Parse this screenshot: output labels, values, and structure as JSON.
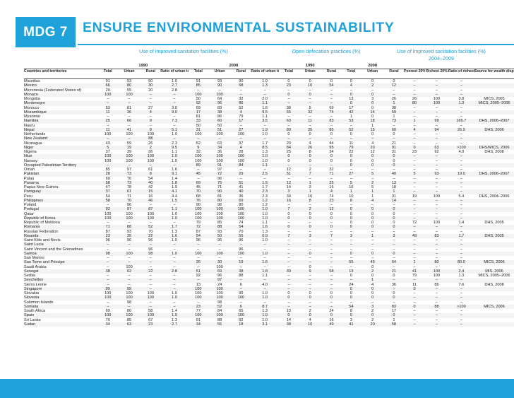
{
  "header": {
    "badge": "MDG 7",
    "title": "ENSURE ENVIRONMENTAL SUSTAINABILITY"
  },
  "groups": {
    "sanitation": "Use of improved sanitation facilities (%)",
    "defecation": "Open defecation practices (%)",
    "quintile": "Use of improved sanitation facilities (%) 2004–2009"
  },
  "years": {
    "y1990": "1990",
    "y2008": "2008"
  },
  "columns": {
    "countries": "Countries and territories",
    "total": "Total",
    "urban": "Urban",
    "rural": "Rural",
    "ratio": "Ratio of urban to rural",
    "poorest": "Poorest 20%",
    "richest": "Richest 20%",
    "ratio_rp": "Ratio of richest to poorest",
    "source": "Source for wealth disparity data"
  },
  "rows": [
    [
      "Mauritius",
      "91",
      "93",
      "90",
      "1.0",
      "91",
      "93",
      "90",
      "1.0",
      "0",
      "0",
      "0",
      "0",
      "0",
      "0",
      "–",
      "–",
      "–",
      ""
    ],
    [
      "Mexico",
      "66",
      "80",
      "30",
      "2.7",
      "85",
      "90",
      "68",
      "1.3",
      "23",
      "10",
      "54",
      "4",
      "2",
      "12",
      "–",
      "–",
      "–",
      ""
    ],
    [
      "Micronesia (Federated States of)",
      "29",
      "55",
      "20",
      "2.8",
      "–",
      "–",
      "–",
      "–",
      "–",
      "–",
      "–",
      "–",
      "–",
      "–",
      "–",
      "–",
      "–",
      ""
    ],
    [
      "Monaco",
      "100",
      "100",
      "–",
      "–",
      "100",
      "100",
      "–",
      "–",
      "0",
      "0",
      "–",
      "0",
      "0",
      "–",
      "–",
      "–",
      "–",
      ""
    ],
    [
      "Mongolia",
      "–",
      "–",
      "–",
      "–",
      "50",
      "64",
      "32",
      "2.0",
      "–",
      "–",
      "–",
      "13",
      "3",
      "26",
      "26",
      "100",
      "3.8",
      "MICS, 2005"
    ],
    [
      "Montenegro",
      "–",
      "–",
      "–",
      "–",
      "92",
      "96",
      "86",
      "1.1",
      "–",
      "–",
      "–",
      "0",
      "0",
      "1",
      "80",
      "100",
      "1.3",
      "MICS, 2005–2006"
    ],
    [
      "Morocco",
      "53",
      "81",
      "27",
      "3.0",
      "69",
      "83",
      "52",
      "1.6",
      "38",
      "5",
      "69",
      "17",
      "0",
      "38",
      "–",
      "–",
      "–",
      ""
    ],
    [
      "Mozambique",
      "11",
      "36",
      "4",
      "9.0",
      "17",
      "38",
      "4",
      "9.5",
      "65",
      "32",
      "74",
      "42",
      "14",
      "59",
      "–",
      "–",
      "–",
      ""
    ],
    [
      "Myanmar",
      "–",
      "–",
      "–",
      "–",
      "81",
      "86",
      "79",
      "1.1",
      "–",
      "–",
      "–",
      "1",
      "0",
      "1",
      "–",
      "–",
      "–",
      ""
    ],
    [
      "Namibia",
      "25",
      "66",
      "9",
      "7.3",
      "33",
      "60",
      "17",
      "3.5",
      "63",
      "11",
      "83",
      "53",
      "18",
      "73",
      "1",
      "99",
      "165.7",
      "DHS, 2006–2007"
    ],
    [
      "Nauru",
      "–",
      "–",
      "–",
      "–",
      "50",
      "50",
      "–",
      "–",
      "–",
      "–",
      "–",
      "–",
      "1",
      "–",
      "–",
      "–",
      "–",
      ""
    ],
    [
      "Nepal",
      "11",
      "41",
      "8",
      "5.1",
      "31",
      "51",
      "27",
      "1.9",
      "80",
      "35",
      "85",
      "52",
      "15",
      "60",
      "4",
      "94",
      "26.9",
      "DHS, 2006"
    ],
    [
      "Netherlands",
      "100",
      "100",
      "100",
      "1.0",
      "100",
      "100",
      "100",
      "1.0",
      "0",
      "0",
      "0",
      "0",
      "0",
      "0",
      "–",
      "–",
      "–",
      ""
    ],
    [
      "New Zealand",
      "–",
      "–",
      "88",
      "–",
      "–",
      "–",
      "–",
      "–",
      "–",
      "–",
      "–",
      "–",
      "–",
      "–",
      "–",
      "–",
      "–",
      ""
    ],
    [
      "Nicaragua",
      "43",
      "59",
      "26",
      "2.3",
      "52",
      "63",
      "37",
      "1.7",
      "23",
      "4",
      "44",
      "11",
      "4",
      "21",
      "–",
      "–",
      "–",
      ""
    ],
    [
      "Niger",
      "5",
      "19",
      "2",
      "9.5",
      "9",
      "34",
      "4",
      "8.5",
      "84",
      "26",
      "95",
      "79",
      "20",
      "91",
      "0",
      "63",
      ">100",
      "DHS/MICS, 2006"
    ],
    [
      "Nigeria",
      "37",
      "39",
      "36",
      "1.1",
      "32",
      "36",
      "28",
      "1.3",
      "25",
      "8",
      "34",
      "22",
      "12",
      "31",
      "23",
      "92",
      "4.0",
      "DHS, 2008"
    ],
    [
      "Niue",
      "100",
      "100",
      "100",
      "1.0",
      "100",
      "100",
      "100",
      "1.0",
      "0",
      "0",
      "0",
      "0",
      "0",
      "0",
      "–",
      "–",
      "–",
      ""
    ],
    [
      "Norway",
      "100",
      "100",
      "100",
      "1.0",
      "100",
      "100",
      "100",
      "1.0",
      "0",
      "0",
      "0",
      "0",
      "0",
      "0",
      "–",
      "–",
      "–",
      ""
    ],
    [
      "Occupied Palestinian Territory",
      "–",
      "–",
      "–",
      "–",
      "89",
      "91",
      "84",
      "1.1",
      "–",
      "–",
      "–",
      "0",
      "0",
      "0",
      "–",
      "–",
      "–",
      ""
    ],
    [
      "Oman",
      "85",
      "97",
      "61",
      "1.6",
      "–",
      "97",
      "–",
      "–",
      "12",
      "2",
      "32",
      "–",
      "–",
      "–",
      "–",
      "–",
      "–",
      ""
    ],
    [
      "Pakistan",
      "28",
      "73",
      "8",
      "9.1",
      "45",
      "72",
      "29",
      "2.5",
      "51",
      "7",
      "71",
      "27",
      "5",
      "40",
      "5",
      "93",
      "19.0",
      "DHS, 2006–2007"
    ],
    [
      "Palau",
      "69",
      "76",
      "54",
      "1.4",
      "–",
      "96",
      "–",
      "–",
      "–",
      "–",
      "–",
      "–",
      "–",
      "–",
      "–",
      "–",
      "–",
      ""
    ],
    [
      "Panama",
      "58",
      "73",
      "40",
      "1.8",
      "69",
      "75",
      "51",
      "1.5",
      "12",
      "1",
      "25",
      "5",
      "2",
      "13",
      "–",
      "–",
      "–",
      ""
    ],
    [
      "Papua New Guinea",
      "47",
      "78",
      "42",
      "1.9",
      "45",
      "71",
      "41",
      "1.7",
      "14",
      "3",
      "16",
      "16",
      "5",
      "18",
      "–",
      "–",
      "–",
      ""
    ],
    [
      "Paraguay",
      "37",
      "61",
      "15",
      "4.1",
      "70",
      "90",
      "40",
      "2.3",
      "3",
      "1",
      "4",
      "1",
      "1",
      "1",
      "–",
      "–",
      "–",
      ""
    ],
    [
      "Peru",
      "54",
      "71",
      "16",
      "4.4",
      "68",
      "81",
      "36",
      "2.3",
      "34",
      "16",
      "74",
      "10",
      "1",
      "31",
      "19",
      "100",
      "5.4",
      "DHS, 2004–2006"
    ],
    [
      "Philippines",
      "58",
      "70",
      "46",
      "1.5",
      "76",
      "80",
      "69",
      "1.2",
      "16",
      "8",
      "23",
      "8",
      "4",
      "14",
      "–",
      "–",
      "–",
      ""
    ],
    [
      "Poland",
      "–",
      "96",
      "–",
      "–",
      "90",
      "96",
      "80",
      "1.2",
      "–",
      "–",
      "–",
      "–",
      "–",
      "–",
      "–",
      "–",
      "–",
      ""
    ],
    [
      "Portugal",
      "92",
      "97",
      "87",
      "1.1",
      "100",
      "100",
      "100",
      "1.0",
      "7",
      "2",
      "12",
      "0",
      "0",
      "0",
      "–",
      "–",
      "–",
      ""
    ],
    [
      "Qatar",
      "100",
      "100",
      "100",
      "1.0",
      "100",
      "100",
      "100",
      "1.0",
      "0",
      "0",
      "0",
      "0",
      "0",
      "0",
      "–",
      "–",
      "–",
      ""
    ],
    [
      "Republic of Korea",
      "100",
      "100",
      "100",
      "1.0",
      "100",
      "100",
      "100",
      "1.0",
      "0",
      "0",
      "0",
      "0",
      "0",
      "0",
      "–",
      "–",
      "–",
      ""
    ],
    [
      "Republic of Moldova",
      "–",
      "–",
      "–",
      "–",
      "79",
      "85",
      "74",
      "1.1",
      "–",
      "–",
      "–",
      "0",
      "0",
      "0",
      "72",
      "100",
      "1.4",
      "DHS, 2005"
    ],
    [
      "Romania",
      "71",
      "88",
      "52",
      "1.7",
      "72",
      "88",
      "54",
      "1.6",
      "0",
      "0",
      "0",
      "0",
      "0",
      "0",
      "–",
      "–",
      "–",
      ""
    ],
    [
      "Russian Federation",
      "87",
      "93",
      "70",
      "1.3",
      "87",
      "93",
      "70",
      "1.3",
      "–",
      "–",
      "–",
      "–",
      "–",
      "–",
      "–",
      "–",
      "–",
      ""
    ],
    [
      "Rwanda",
      "23",
      "35",
      "22",
      "1.6",
      "54",
      "50",
      "55",
      "0.9",
      "7",
      "3",
      "7",
      "3",
      "1",
      "3",
      "49",
      "83",
      "1.7",
      "DHS, 2005"
    ],
    [
      "Saint Kitts and Nevis",
      "96",
      "96",
      "96",
      "1.0",
      "96",
      "96",
      "96",
      "1.0",
      "–",
      "–",
      "–",
      "–",
      "–",
      "–",
      "–",
      "–",
      "–",
      ""
    ],
    [
      "Saint Lucia",
      "–",
      "–",
      "–",
      "–",
      "–",
      "–",
      "–",
      "–",
      "–",
      "–",
      "–",
      "–",
      "–",
      "–",
      "–",
      "–",
      "–",
      ""
    ],
    [
      "Saint Vincent and the Grenadines",
      "–",
      "–",
      "96",
      "–",
      "–",
      "–",
      "96",
      "–",
      "–",
      "–",
      "–",
      "–",
      "–",
      "–",
      "–",
      "–",
      "–",
      ""
    ],
    [
      "Samoa",
      "98",
      "100",
      "98",
      "1.0",
      "100",
      "100",
      "100",
      "1.0",
      "–",
      "0",
      "–",
      "0",
      "0",
      "0",
      "–",
      "–",
      "–",
      ""
    ],
    [
      "San Marino",
      "–",
      "–",
      "–",
      "–",
      "–",
      "–",
      "–",
      "–",
      "–",
      "–",
      "–",
      "–",
      "–",
      "–",
      "–",
      "–",
      "–",
      ""
    ],
    [
      "Sao Tome and Principe",
      "–",
      "–",
      "–",
      "–",
      "26",
      "30",
      "19",
      "1.6",
      "–",
      "–",
      "–",
      "55",
      "49",
      "64",
      "1",
      "80",
      "80.0",
      "MICS, 2006"
    ],
    [
      "Saudi Arabia",
      "–",
      "100",
      "–",
      "–",
      "–",
      "100",
      "–",
      "–",
      "–",
      "0",
      "–",
      "–",
      "0",
      "–",
      "–",
      "–",
      "–",
      ""
    ],
    [
      "Senegal",
      "38",
      "62",
      "22",
      "2.8",
      "51",
      "69",
      "38",
      "1.8",
      "39",
      "9",
      "58",
      "13",
      "2",
      "21",
      "41",
      "100",
      "2.4",
      "MIS, 2006"
    ],
    [
      "Serbia",
      "–",
      "–",
      "–",
      "–",
      "92",
      "96",
      "88",
      "1.1",
      "–",
      "–",
      "–",
      "0",
      "0",
      "0",
      "79",
      "100",
      "1.3",
      "MICS, 2005–2006"
    ],
    [
      "Seychelles",
      "–",
      "–",
      "–",
      "–",
      "–",
      "97",
      "–",
      "–",
      "–",
      "–",
      "–",
      "–",
      "1",
      "–",
      "–",
      "–",
      "–",
      ""
    ],
    [
      "Sierra Leone",
      "–",
      "–",
      "–",
      "–",
      "13",
      "24",
      "6",
      "4.0",
      "–",
      "–",
      "–",
      "24",
      "4",
      "36",
      "11",
      "86",
      "7.6",
      "DHS, 2008"
    ],
    [
      "Singapore",
      "99",
      "99",
      "–",
      "–",
      "100",
      "100",
      "–",
      "–",
      "–",
      "–",
      "–",
      "0",
      "0",
      "–",
      "0",
      "–",
      "–",
      ""
    ],
    [
      "Slovakia",
      "100",
      "100",
      "100",
      "1.0",
      "100",
      "100",
      "99",
      "1.0",
      "0",
      "0",
      "0",
      "0",
      "0",
      "0",
      "–",
      "–",
      "–",
      ""
    ],
    [
      "Slovenia",
      "100",
      "100",
      "100",
      "1.0",
      "100",
      "100",
      "100",
      "1.0",
      "0",
      "0",
      "0",
      "0",
      "0",
      "0",
      "–",
      "–",
      "–",
      ""
    ],
    [
      "Solomon Islands",
      "–",
      "98",
      "–",
      "–",
      "–",
      "98",
      "–",
      "–",
      "–",
      "–",
      "–",
      "–",
      "–",
      "–",
      "–",
      "–",
      "–",
      ""
    ],
    [
      "Somalia",
      "–",
      "–",
      "–",
      "–",
      "23",
      "52",
      "6",
      "8.7",
      "–",
      "–",
      "–",
      "54",
      "3",
      "83",
      "0",
      "88",
      ">100",
      "MICS, 2006"
    ],
    [
      "South Africa",
      "69",
      "80",
      "58",
      "1.4",
      "77",
      "84",
      "65",
      "1.3",
      "13",
      "2",
      "24",
      "8",
      "2",
      "17",
      "–",
      "–",
      "–",
      ""
    ],
    [
      "Spain",
      "100",
      "100",
      "100",
      "1.0",
      "100",
      "100",
      "100",
      "1.0",
      "0",
      "0",
      "0",
      "0",
      "0",
      "0",
      "–",
      "–",
      "–",
      ""
    ],
    [
      "Sri Lanka",
      "70",
      "85",
      "67",
      "1.3",
      "91",
      "88",
      "92",
      "1.0",
      "14",
      "4",
      "16",
      "3",
      "2",
      "1",
      "–",
      "–",
      "–",
      ""
    ],
    [
      "Sudan",
      "34",
      "63",
      "23",
      "2.7",
      "34",
      "55",
      "18",
      "3.1",
      "38",
      "10",
      "49",
      "41",
      "20",
      "58",
      "–",
      "–",
      "–",
      ""
    ]
  ]
}
